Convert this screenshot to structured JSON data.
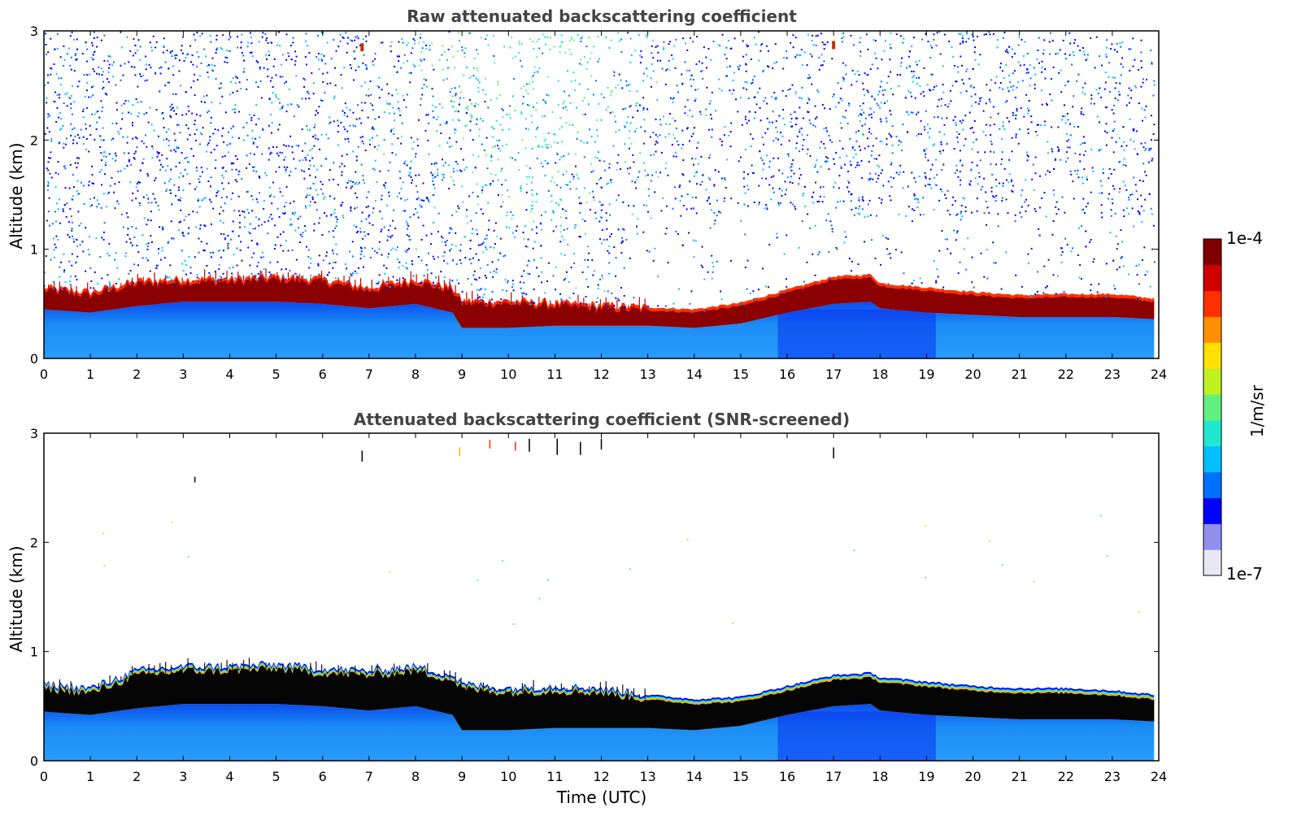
{
  "chart_data": [
    {
      "type": "heatmap",
      "title": "Raw attenuated backscattering coefficient",
      "xlabel": "",
      "ylabel": "Altitude (km)",
      "xlim": [
        0,
        24
      ],
      "ylim": [
        0,
        3
      ],
      "x_ticks": [
        "0",
        "1",
        "2",
        "3",
        "4",
        "5",
        "6",
        "7",
        "8",
        "9",
        "10",
        "11",
        "12",
        "13",
        "14",
        "15",
        "16",
        "17",
        "18",
        "19",
        "20",
        "21",
        "22",
        "23",
        "24"
      ],
      "y_ticks": [
        "0",
        "1",
        "2",
        "3"
      ],
      "grid": false,
      "layer_top_km": {
        "x": [
          0,
          1,
          2,
          3,
          4,
          5,
          6,
          7,
          8,
          8.8,
          9,
          10,
          11,
          12,
          13,
          14,
          15,
          16,
          17,
          17.8,
          18,
          19,
          20,
          21,
          22,
          23,
          23.9
        ],
        "y": [
          0.62,
          0.58,
          0.68,
          0.7,
          0.7,
          0.72,
          0.7,
          0.62,
          0.7,
          0.62,
          0.5,
          0.5,
          0.48,
          0.46,
          0.44,
          0.42,
          0.48,
          0.6,
          0.72,
          0.74,
          0.66,
          0.62,
          0.58,
          0.55,
          0.56,
          0.56,
          0.52
        ]
      },
      "layer_base_km": {
        "x": [
          0,
          1,
          2,
          3,
          4,
          5,
          6,
          7,
          8,
          8.8,
          9,
          10,
          11,
          12,
          13,
          14,
          15,
          16,
          17,
          17.8,
          18,
          19,
          20,
          21,
          22,
          23,
          23.9
        ],
        "y": [
          0.45,
          0.42,
          0.48,
          0.52,
          0.52,
          0.52,
          0.5,
          0.46,
          0.5,
          0.42,
          0.28,
          0.28,
          0.3,
          0.3,
          0.3,
          0.28,
          0.32,
          0.42,
          0.5,
          0.52,
          0.46,
          0.42,
          0.4,
          0.38,
          0.38,
          0.38,
          0.36
        ]
      },
      "noise_level": "high"
    },
    {
      "type": "heatmap",
      "title": "Attenuated backscattering coefficient (SNR-screened)",
      "xlabel": "Time (UTC)",
      "ylabel": "Altitude (km)",
      "xlim": [
        0,
        24
      ],
      "ylim": [
        0,
        3
      ],
      "x_ticks": [
        "0",
        "1",
        "2",
        "3",
        "4",
        "5",
        "6",
        "7",
        "8",
        "9",
        "10",
        "11",
        "12",
        "13",
        "14",
        "15",
        "16",
        "17",
        "18",
        "19",
        "20",
        "21",
        "22",
        "23",
        "24"
      ],
      "y_ticks": [
        "0",
        "1",
        "2",
        "3"
      ],
      "grid": false,
      "layer_top_km": {
        "x": [
          0,
          1,
          2,
          3,
          4,
          5,
          6,
          7,
          8,
          8.8,
          9,
          10,
          11,
          12,
          13,
          14,
          15,
          16,
          17,
          17.8,
          18,
          19,
          20,
          21,
          22,
          23,
          23.9
        ],
        "y": [
          0.66,
          0.62,
          0.78,
          0.82,
          0.82,
          0.84,
          0.8,
          0.78,
          0.82,
          0.74,
          0.66,
          0.62,
          0.64,
          0.62,
          0.56,
          0.52,
          0.54,
          0.64,
          0.74,
          0.76,
          0.72,
          0.68,
          0.64,
          0.62,
          0.62,
          0.6,
          0.56
        ]
      },
      "layer_base_km": {
        "x": [
          0,
          1,
          2,
          3,
          4,
          5,
          6,
          7,
          8,
          8.8,
          9,
          10,
          11,
          12,
          13,
          14,
          15,
          16,
          17,
          17.8,
          18,
          19,
          20,
          21,
          22,
          23,
          23.9
        ],
        "y": [
          0.45,
          0.42,
          0.48,
          0.52,
          0.52,
          0.52,
          0.5,
          0.46,
          0.5,
          0.42,
          0.28,
          0.28,
          0.3,
          0.3,
          0.3,
          0.28,
          0.32,
          0.42,
          0.5,
          0.52,
          0.46,
          0.42,
          0.4,
          0.38,
          0.38,
          0.38,
          0.36
        ]
      },
      "noise_level": "screened"
    }
  ],
  "colorbar": {
    "label": "1/m/sr",
    "max_label": "1e-4",
    "min_label": "1e-7",
    "colormap": "jet",
    "colors": [
      "#e8e8f4",
      "#9090f0",
      "#0000ff",
      "#0070ff",
      "#00c0ff",
      "#20e8d0",
      "#60f080",
      "#c0f020",
      "#ffe000",
      "#ff9000",
      "#ff3000",
      "#d00000",
      "#800000"
    ]
  }
}
